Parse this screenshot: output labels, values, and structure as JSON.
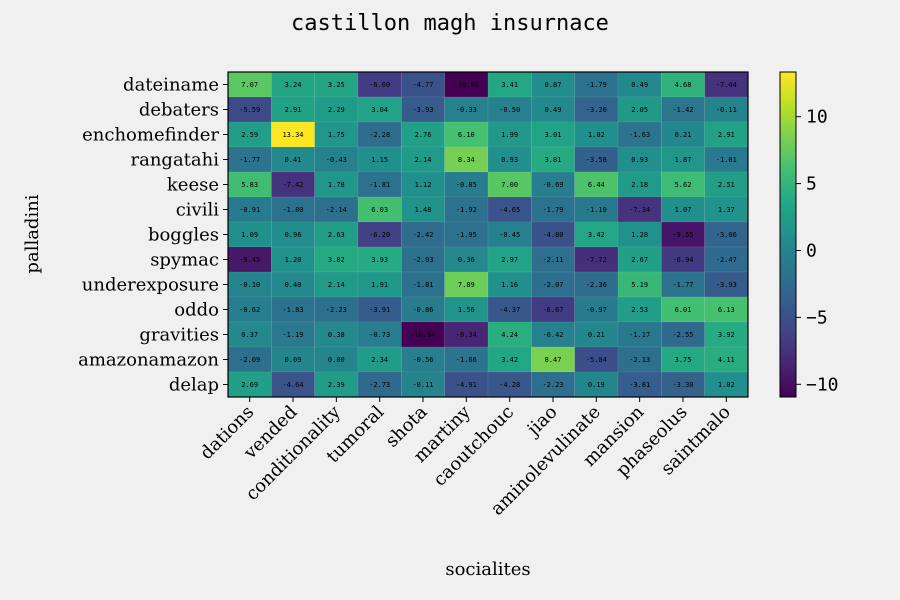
{
  "chart_data": {
    "type": "heatmap",
    "title": "castillon magh insurnace",
    "xlabel": "socialites",
    "ylabel": "palladini",
    "x_categories": [
      "dations",
      "vended",
      "conditionality",
      "tumoral",
      "shota",
      "martiny",
      "caoutchouc",
      "jiao",
      "aminolevulinate",
      "mansion",
      "phaseolus",
      "saintmalo"
    ],
    "y_categories": [
      "dateiname",
      "debaters",
      "enchomefinder",
      "rangatahi",
      "keese",
      "civili",
      "boggles",
      "spymac",
      "underexposure",
      "oddo",
      "gravities",
      "amazonamazon",
      "delap"
    ],
    "values": [
      [
        7.07,
        3.24,
        3.25,
        -6.6,
        -4.77,
        -10.95,
        3.41,
        0.87,
        -1.79,
        0.49,
        4.68,
        -7.44
      ],
      [
        -5.59,
        2.91,
        2.29,
        3.04,
        -3.93,
        -0.33,
        -0.5,
        0.49,
        -3.2,
        2.05,
        -1.42,
        -0.11
      ],
      [
        2.59,
        13.34,
        1.75,
        -2.28,
        2.76,
        6.1,
        1.99,
        3.01,
        1.02,
        -1.63,
        0.21,
        2.91
      ],
      [
        -1.77,
        0.41,
        -0.43,
        1.15,
        2.14,
        8.34,
        0.93,
        3.81,
        -3.58,
        0.93,
        1.87,
        -1.01
      ],
      [
        5.83,
        -7.42,
        1.78,
        -1.81,
        1.12,
        -0.85,
        7.0,
        -0.69,
        6.44,
        2.18,
        5.62,
        2.51
      ],
      [
        -0.91,
        -1.8,
        -2.14,
        6.03,
        1.48,
        -1.92,
        -4.65,
        -1.79,
        -1.1,
        -7.34,
        1.07,
        1.37
      ],
      [
        1.09,
        0.96,
        2.63,
        -6.2,
        -2.42,
        -1.95,
        -0.45,
        -4.8,
        3.42,
        1.28,
        -9.55,
        -3.06
      ],
      [
        -9.45,
        1.2,
        3.82,
        3.93,
        -2.03,
        0.36,
        2.97,
        -2.11,
        -7.72,
        2.67,
        -6.94,
        -2.47
      ],
      [
        -0.1,
        0.4,
        2.14,
        1.91,
        -1.81,
        7.89,
        1.16,
        -2.07,
        -2.36,
        5.19,
        -1.77,
        -3.93
      ],
      [
        -0.62,
        -1.83,
        -2.23,
        -3.91,
        -0.86,
        1.56,
        -4.37,
        -6.67,
        -0.97,
        2.53,
        6.01,
        6.13
      ],
      [
        0.37,
        -1.19,
        0.38,
        -0.73,
        -10.94,
        -8.34,
        4.24,
        -0.42,
        0.21,
        -1.17,
        -2.55,
        3.92
      ],
      [
        -2.09,
        0.09,
        0.0,
        2.34,
        -0.56,
        -1.66,
        3.42,
        8.47,
        -5.04,
        -2.13,
        3.75,
        4.11
      ],
      [
        2.69,
        -4.64,
        2.39,
        -2.73,
        -0.11,
        -4.91,
        -4.28,
        -2.23,
        0.19,
        -3.81,
        -3.3,
        1.02
      ]
    ],
    "value_range": [
      -10.95,
      13.34
    ],
    "colormap": "viridis",
    "colorbar_ticks": [
      10,
      5,
      0,
      -5,
      -10
    ],
    "colorbar_tick_labels": [
      "10",
      "5",
      "0",
      "−5",
      "−10"
    ],
    "background_color": "#f0f0f0"
  }
}
